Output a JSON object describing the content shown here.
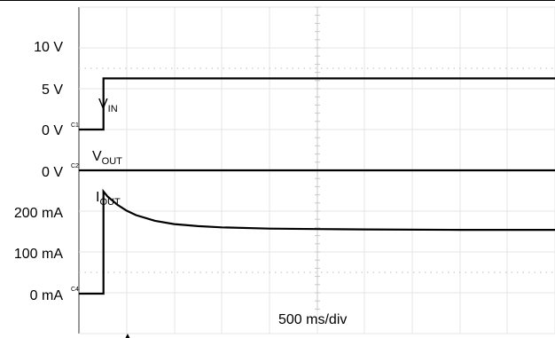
{
  "chart_data": {
    "type": "line",
    "title": "",
    "xlabel": "",
    "ylabel": "",
    "grid": true,
    "timebase": "500 ms/div",
    "trigger_marker": "▲",
    "y_tick_labels": [
      "10 V",
      "5 V",
      "0 V",
      "0 V",
      "200 mA",
      "100 mA",
      "0 mA"
    ],
    "channel_markers": [
      "C1",
      "C2",
      "C4"
    ],
    "units": {
      "x": "ms",
      "voltage": "V",
      "current": "mA"
    },
    "x_range_ms": [
      0,
      5000
    ],
    "step_time_ms": 258,
    "series": [
      {
        "label_main": "V",
        "label_sub": "IN",
        "channel": "C1",
        "unit": "V",
        "points": [
          [
            0,
            0
          ],
          [
            258,
            0
          ],
          [
            258,
            6.4
          ],
          [
            5000,
            6.4
          ]
        ]
      },
      {
        "label_main": "V",
        "label_sub": "OUT",
        "channel": "C2",
        "unit": "V",
        "points": [
          [
            0,
            0
          ],
          [
            5000,
            0
          ]
        ]
      },
      {
        "label_main": "I",
        "label_sub": "OUT",
        "channel": "C4",
        "unit": "mA",
        "points": [
          [
            0,
            0
          ],
          [
            258,
            0
          ],
          [
            258,
            250
          ],
          [
            300,
            238
          ],
          [
            400,
            218
          ],
          [
            500,
            203
          ],
          [
            600,
            192
          ],
          [
            800,
            178
          ],
          [
            1000,
            170
          ],
          [
            1250,
            165
          ],
          [
            1500,
            162
          ],
          [
            2000,
            159
          ],
          [
            2500,
            158
          ],
          [
            3000,
            157
          ],
          [
            4000,
            156
          ],
          [
            5000,
            156
          ]
        ]
      }
    ]
  }
}
